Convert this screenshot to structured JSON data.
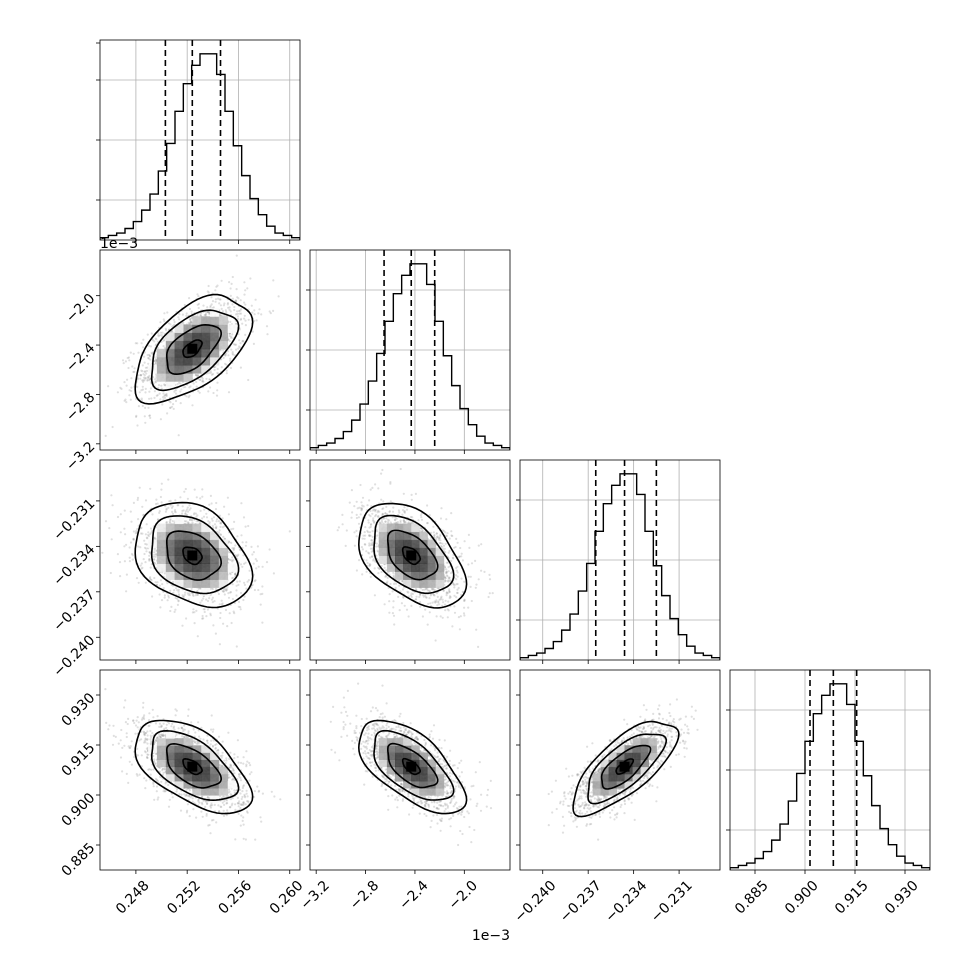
{
  "figure": {
    "type": "corner-plot",
    "n_params": 4
  },
  "parameters": [
    {
      "index": 0,
      "range": [
        0.2452,
        0.2608
      ],
      "ticks": [
        0.248,
        0.252,
        0.256,
        0.26
      ],
      "tick_labels": [
        "0.248",
        "0.252",
        "0.256",
        "0.260"
      ]
    },
    {
      "index": 1,
      "range": [
        -3.25,
        -1.63
      ],
      "ticks": [
        -3.2,
        -2.8,
        -2.4,
        -2.0
      ],
      "tick_labels": [
        "−3.2",
        "−2.8",
        "−2.4",
        "−2.0"
      ],
      "scale_factor_label": "1e−3"
    },
    {
      "index": 2,
      "range": [
        -0.2415,
        -0.2283
      ],
      "ticks": [
        -0.24,
        -0.237,
        -0.234,
        -0.231
      ],
      "tick_labels": [
        "−0.240",
        "−0.237",
        "−0.234",
        "−0.231"
      ]
    },
    {
      "index": 3,
      "range": [
        0.8775,
        0.9375
      ],
      "ticks": [
        0.885,
        0.9,
        0.915,
        0.93
      ],
      "tick_labels": [
        "0.885",
        "0.900",
        "0.915",
        "0.930"
      ]
    }
  ],
  "chart_data": [
    {
      "type": "bar",
      "panel": "hist-0",
      "bin_edges_range": [
        0.2452,
        0.2608
      ],
      "counts": [
        1,
        2,
        3,
        5,
        8,
        13,
        20,
        30,
        42,
        56,
        68,
        76,
        81,
        81,
        72,
        56,
        41,
        28,
        18,
        11,
        6,
        3,
        2,
        1
      ],
      "quantiles": [
        0.2503,
        0.2524,
        0.2546
      ],
      "ylim": [
        0,
        87
      ]
    },
    {
      "type": "bar",
      "panel": "hist-1",
      "bin_edges_range": [
        -3.25,
        -1.63
      ],
      "counts": [
        1,
        2,
        3,
        5,
        8,
        13,
        20,
        30,
        42,
        56,
        68,
        76,
        81,
        81,
        72,
        56,
        41,
        28,
        18,
        11,
        6,
        3,
        2,
        1
      ],
      "quantiles": [
        -2.65,
        -2.43,
        -2.24
      ],
      "ylim": [
        0,
        87
      ]
    },
    {
      "type": "bar",
      "panel": "hist-2",
      "bin_edges_range": [
        -0.2415,
        -0.2283
      ],
      "counts": [
        1,
        2,
        3,
        5,
        8,
        13,
        20,
        30,
        42,
        56,
        68,
        76,
        81,
        81,
        72,
        56,
        41,
        28,
        18,
        11,
        6,
        3,
        2,
        1
      ],
      "quantiles": [
        -0.2365,
        -0.2346,
        -0.2325
      ],
      "ylim": [
        0,
        87
      ]
    },
    {
      "type": "bar",
      "panel": "hist-3",
      "bin_edges_range": [
        0.8775,
        0.9375
      ],
      "counts": [
        1,
        2,
        3,
        5,
        8,
        13,
        20,
        30,
        42,
        56,
        68,
        76,
        81,
        81,
        72,
        56,
        41,
        28,
        18,
        11,
        6,
        3,
        2,
        1
      ],
      "quantiles": [
        0.9015,
        0.9085,
        0.9155
      ],
      "ylim": [
        0,
        87
      ]
    },
    {
      "type": "scatter",
      "panel": "pair-1-0",
      "x_param": 0,
      "y_param": 1,
      "center": [
        0.2524,
        -2.43
      ],
      "sigma": [
        0.0021,
        0.2
      ],
      "rho": 0.55
    },
    {
      "type": "scatter",
      "panel": "pair-2-0",
      "x_param": 0,
      "y_param": 2,
      "center": [
        0.2524,
        -0.2346
      ],
      "sigma": [
        0.0021,
        0.0016
      ],
      "rho": -0.3
    },
    {
      "type": "scatter",
      "panel": "pair-3-0",
      "x_param": 0,
      "y_param": 3,
      "center": [
        0.2524,
        0.9085
      ],
      "sigma": [
        0.0021,
        0.0065
      ],
      "rho": -0.55
    },
    {
      "type": "scatter",
      "panel": "pair-2-1",
      "x_param": 1,
      "y_param": 2,
      "center": [
        -2.43,
        -0.2346
      ],
      "sigma": [
        0.2,
        0.0016
      ],
      "rho": -0.45
    },
    {
      "type": "scatter",
      "panel": "pair-3-1",
      "x_param": 1,
      "y_param": 3,
      "center": [
        -2.43,
        0.9085
      ],
      "sigma": [
        0.2,
        0.0065
      ],
      "rho": -0.62
    },
    {
      "type": "scatter",
      "panel": "pair-3-2",
      "x_param": 2,
      "y_param": 3,
      "center": [
        -0.2346,
        0.9085
      ],
      "sigma": [
        0.0016,
        0.0065
      ],
      "rho": 0.72
    }
  ],
  "colors": {
    "line": "#000000",
    "grid": "#b0b0b0",
    "points": "#8c8c8c"
  }
}
